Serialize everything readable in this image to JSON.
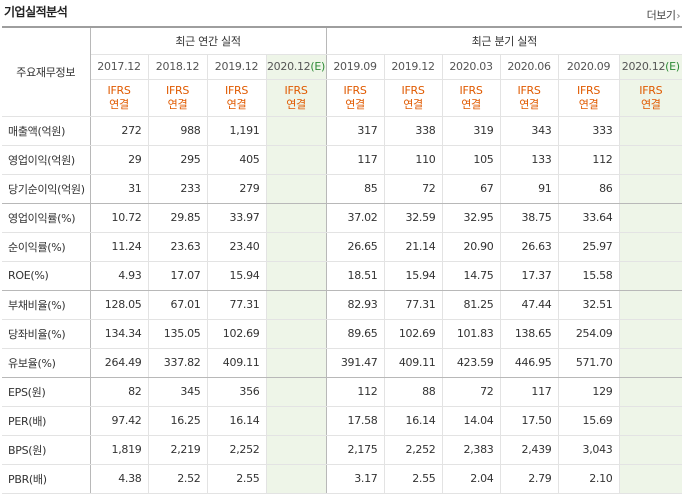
{
  "header": {
    "title": "기업실적분석",
    "more_label": "더보기",
    "more_chevron": "›"
  },
  "table": {
    "row_header": "주요재무정보",
    "annual_header": "최근 연간 실적",
    "quarter_header": "최근 분기 실적",
    "estimate_mark": "(E)",
    "annual_periods": [
      "2017.12",
      "2018.12",
      "2019.12",
      "2020.12"
    ],
    "quarter_periods": [
      "2019.09",
      "2019.12",
      "2020.03",
      "2020.06",
      "2020.09",
      "2020.12"
    ],
    "ifrs_line1": "IFRS",
    "ifrs_line2": "연결",
    "rows": [
      {
        "label": "매출액(억원)",
        "annual": [
          "272",
          "988",
          "1,191",
          ""
        ],
        "quarter": [
          "317",
          "338",
          "319",
          "343",
          "333",
          ""
        ]
      },
      {
        "label": "영업이익(억원)",
        "annual": [
          "29",
          "295",
          "405",
          ""
        ],
        "quarter": [
          "117",
          "110",
          "105",
          "133",
          "112",
          ""
        ]
      },
      {
        "label": "당기순이익(억원)",
        "annual": [
          "31",
          "233",
          "279",
          ""
        ],
        "quarter": [
          "85",
          "72",
          "67",
          "91",
          "86",
          ""
        ]
      },
      {
        "label": "영업이익률(%)",
        "annual": [
          "10.72",
          "29.85",
          "33.97",
          ""
        ],
        "quarter": [
          "37.02",
          "32.59",
          "32.95",
          "38.75",
          "33.64",
          ""
        ]
      },
      {
        "label": "순이익률(%)",
        "annual": [
          "11.24",
          "23.63",
          "23.40",
          ""
        ],
        "quarter": [
          "26.65",
          "21.14",
          "20.90",
          "26.63",
          "25.97",
          ""
        ]
      },
      {
        "label": "ROE(%)",
        "annual": [
          "4.93",
          "17.07",
          "15.94",
          ""
        ],
        "quarter": [
          "18.51",
          "15.94",
          "14.75",
          "17.37",
          "15.58",
          ""
        ]
      },
      {
        "label": "부채비율(%)",
        "annual": [
          "128.05",
          "67.01",
          "77.31",
          ""
        ],
        "quarter": [
          "82.93",
          "77.31",
          "81.25",
          "47.44",
          "32.51",
          ""
        ]
      },
      {
        "label": "당좌비율(%)",
        "annual": [
          "134.34",
          "135.05",
          "102.69",
          ""
        ],
        "quarter": [
          "89.65",
          "102.69",
          "101.83",
          "138.65",
          "254.09",
          ""
        ]
      },
      {
        "label": "유보율(%)",
        "annual": [
          "264.49",
          "337.82",
          "409.11",
          ""
        ],
        "quarter": [
          "391.47",
          "409.11",
          "423.59",
          "446.95",
          "571.70",
          ""
        ]
      },
      {
        "label": "EPS(원)",
        "annual": [
          "82",
          "345",
          "356",
          ""
        ],
        "quarter": [
          "112",
          "88",
          "72",
          "117",
          "129",
          ""
        ]
      },
      {
        "label": "PER(배)",
        "annual": [
          "97.42",
          "16.25",
          "16.14",
          ""
        ],
        "quarter": [
          "17.58",
          "16.14",
          "14.04",
          "17.50",
          "15.69",
          ""
        ]
      },
      {
        "label": "BPS(원)",
        "annual": [
          "1,819",
          "2,219",
          "2,252",
          ""
        ],
        "quarter": [
          "2,175",
          "2,252",
          "2,383",
          "2,439",
          "3,043",
          ""
        ]
      },
      {
        "label": "PBR(배)",
        "annual": [
          "4.38",
          "2.52",
          "2.55",
          ""
        ],
        "quarter": [
          "3.17",
          "2.55",
          "2.04",
          "2.79",
          "2.10",
          ""
        ]
      }
    ]
  }
}
